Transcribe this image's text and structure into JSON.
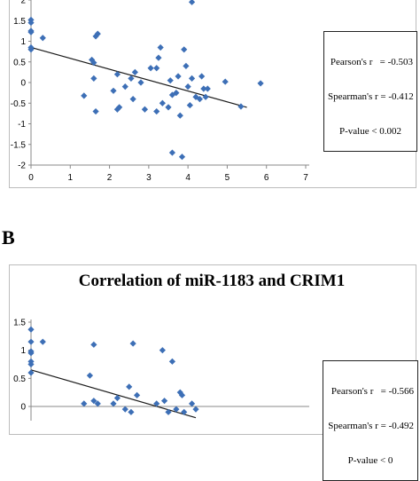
{
  "panel_b_letter": "B",
  "chart_data": [
    {
      "type": "scatter",
      "title": "",
      "xlabel": "",
      "ylabel": "",
      "xlim": [
        0,
        7
      ],
      "ylim": [
        -2,
        2
      ],
      "x_ticks": [
        "0",
        "1",
        "2",
        "3",
        "4",
        "5",
        "6",
        "7"
      ],
      "y_ticks": [
        "2",
        "1.5",
        "1",
        "0.5",
        "0",
        "-0.5",
        "-1",
        "-1.5",
        "-2"
      ],
      "marker_color": "#3d6fb6",
      "trendline": {
        "x": [
          0,
          5.5
        ],
        "y": [
          0.85,
          -0.6
        ]
      },
      "stats": {
        "pearson": "Pearson's r   = -0.503",
        "spearman": "Spearman's r = -0.412",
        "pvalue": "P-value < 0.002"
      },
      "points": [
        {
          "x": 0.0,
          "y": 1.52
        },
        {
          "x": 0.0,
          "y": 1.45
        },
        {
          "x": 0.0,
          "y": 1.25
        },
        {
          "x": 0.0,
          "y": 1.22
        },
        {
          "x": 0.0,
          "y": 0.85
        },
        {
          "x": 0.0,
          "y": 0.8
        },
        {
          "x": 0.3,
          "y": 1.08
        },
        {
          "x": 1.55,
          "y": 0.55
        },
        {
          "x": 1.6,
          "y": 0.48
        },
        {
          "x": 1.65,
          "y": 1.12
        },
        {
          "x": 1.7,
          "y": 1.18
        },
        {
          "x": 1.35,
          "y": -0.32
        },
        {
          "x": 1.6,
          "y": 0.1
        },
        {
          "x": 1.65,
          "y": -0.7
        },
        {
          "x": 2.1,
          "y": -0.2
        },
        {
          "x": 2.2,
          "y": 0.2
        },
        {
          "x": 2.2,
          "y": -0.65
        },
        {
          "x": 2.25,
          "y": -0.6
        },
        {
          "x": 2.4,
          "y": -0.1
        },
        {
          "x": 2.55,
          "y": 0.1
        },
        {
          "x": 2.6,
          "y": -0.4
        },
        {
          "x": 2.65,
          "y": 0.25
        },
        {
          "x": 2.8,
          "y": 0.0
        },
        {
          "x": 2.9,
          "y": -0.65
        },
        {
          "x": 3.05,
          "y": 0.35
        },
        {
          "x": 3.2,
          "y": 0.35
        },
        {
          "x": 3.25,
          "y": 0.6
        },
        {
          "x": 3.3,
          "y": 0.85
        },
        {
          "x": 3.2,
          "y": -0.7
        },
        {
          "x": 3.35,
          "y": -0.5
        },
        {
          "x": 3.5,
          "y": -0.6
        },
        {
          "x": 3.55,
          "y": 0.05
        },
        {
          "x": 3.6,
          "y": -0.3
        },
        {
          "x": 3.6,
          "y": -1.7
        },
        {
          "x": 3.7,
          "y": -0.25
        },
        {
          "x": 3.75,
          "y": 0.15
        },
        {
          "x": 3.8,
          "y": -0.8
        },
        {
          "x": 3.85,
          "y": -1.8
        },
        {
          "x": 3.9,
          "y": 0.8
        },
        {
          "x": 3.95,
          "y": 0.4
        },
        {
          "x": 4.0,
          "y": -0.1
        },
        {
          "x": 4.05,
          "y": -0.55
        },
        {
          "x": 4.1,
          "y": 0.1
        },
        {
          "x": 4.1,
          "y": 1.95
        },
        {
          "x": 4.2,
          "y": -0.35
        },
        {
          "x": 4.3,
          "y": -0.4
        },
        {
          "x": 4.35,
          "y": 0.15
        },
        {
          "x": 4.4,
          "y": -0.15
        },
        {
          "x": 4.45,
          "y": -0.35
        },
        {
          "x": 4.5,
          "y": -0.15
        },
        {
          "x": 4.95,
          "y": 0.02
        },
        {
          "x": 5.35,
          "y": -0.58
        },
        {
          "x": 5.85,
          "y": -0.02
        }
      ]
    },
    {
      "type": "scatter",
      "title": "Correlation of miR-1183 and CRIM1",
      "xlabel": "",
      "ylabel": "",
      "xlim": [
        0,
        7
      ],
      "ylim": [
        -0.2,
        1.5
      ],
      "y_ticks": [
        "1.5",
        "1",
        "0.5",
        "0"
      ],
      "marker_color": "#3d6fb6",
      "trendline": {
        "x": [
          0,
          4.2
        ],
        "y": [
          0.65,
          -0.2
        ]
      },
      "stats": {
        "pearson": "Pearson's r   = -0.566",
        "spearman": "Spearman's r = -0.492",
        "pvalue": "P-value < 0"
      },
      "points": [
        {
          "x": 0.0,
          "y": 1.37
        },
        {
          "x": 0.0,
          "y": 1.15
        },
        {
          "x": 0.0,
          "y": 0.98
        },
        {
          "x": 0.0,
          "y": 0.95
        },
        {
          "x": 0.0,
          "y": 0.8
        },
        {
          "x": 0.0,
          "y": 0.75
        },
        {
          "x": 0.0,
          "y": 0.6
        },
        {
          "x": 0.3,
          "y": 1.15
        },
        {
          "x": 1.35,
          "y": 0.05
        },
        {
          "x": 1.5,
          "y": 0.55
        },
        {
          "x": 1.6,
          "y": 1.1
        },
        {
          "x": 1.6,
          "y": 0.1
        },
        {
          "x": 1.7,
          "y": 0.05
        },
        {
          "x": 2.1,
          "y": 0.05
        },
        {
          "x": 2.2,
          "y": 0.15
        },
        {
          "x": 2.4,
          "y": -0.05
        },
        {
          "x": 2.5,
          "y": 0.35
        },
        {
          "x": 2.55,
          "y": -0.1
        },
        {
          "x": 2.6,
          "y": 1.12
        },
        {
          "x": 2.7,
          "y": 0.2
        },
        {
          "x": 3.2,
          "y": 0.05
        },
        {
          "x": 3.35,
          "y": 1.0
        },
        {
          "x": 3.4,
          "y": 0.1
        },
        {
          "x": 3.5,
          "y": -0.1
        },
        {
          "x": 3.6,
          "y": 0.8
        },
        {
          "x": 3.7,
          "y": -0.05
        },
        {
          "x": 3.8,
          "y": 0.25
        },
        {
          "x": 3.85,
          "y": 0.2
        },
        {
          "x": 3.9,
          "y": -0.1
        },
        {
          "x": 4.1,
          "y": 0.05
        },
        {
          "x": 4.2,
          "y": -0.05
        }
      ]
    }
  ]
}
